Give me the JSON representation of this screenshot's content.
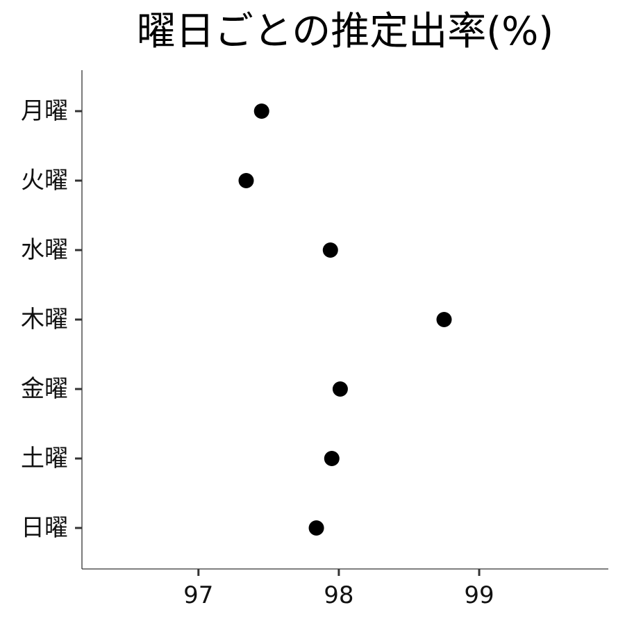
{
  "chart_data": {
    "type": "scatter",
    "title": "曜日ごとの推定出率(%)",
    "xlabel": "",
    "ylabel": "",
    "categories": [
      "月曜",
      "火曜",
      "水曜",
      "木曜",
      "金曜",
      "土曜",
      "日曜"
    ],
    "values": [
      97.45,
      97.34,
      97.94,
      98.75,
      98.01,
      97.95,
      97.84
    ],
    "xlim": [
      96.17,
      99.92
    ],
    "xticks": [
      97,
      98,
      99
    ],
    "grid": false,
    "legend": "none",
    "point_color": "#000000"
  }
}
